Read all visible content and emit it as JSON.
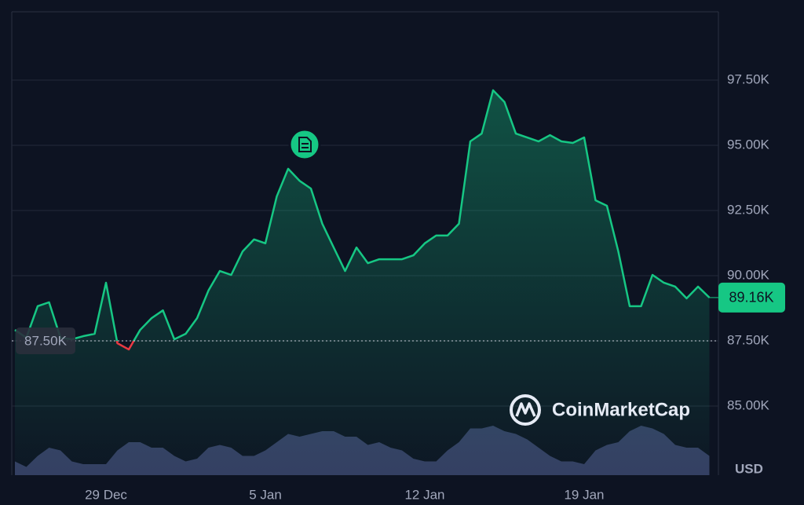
{
  "chart_data": {
    "type": "line",
    "categories": [
      null,
      null,
      null,
      null,
      null,
      null,
      null,
      null,
      "29 Dec",
      null,
      null,
      null,
      null,
      null,
      null,
      null,
      null,
      null,
      null,
      null,
      null,
      null,
      "5 Jan",
      null,
      null,
      null,
      null,
      null,
      null,
      null,
      null,
      null,
      null,
      null,
      null,
      null,
      "12 Jan",
      null,
      null,
      null,
      null,
      null,
      null,
      null,
      null,
      null,
      null,
      null,
      null,
      null,
      "19 Jan",
      null,
      null,
      null,
      null,
      null,
      null,
      null,
      null,
      null,
      null,
      null
    ],
    "values": [
      87920,
      87620,
      88830,
      88980,
      87620,
      87560,
      87680,
      87770,
      89730,
      87410,
      87170,
      87920,
      88370,
      88670,
      87560,
      87770,
      88370,
      89430,
      90180,
      90030,
      90930,
      91390,
      91240,
      93040,
      94100,
      93640,
      93340,
      91990,
      91080,
      90180,
      91080,
      90480,
      90630,
      90630,
      90630,
      90780,
      91240,
      91540,
      91540,
      91990,
      95150,
      95450,
      97110,
      96660,
      95450,
      95300,
      95150,
      95390,
      95150,
      95090,
      95300,
      92890,
      92680,
      90930,
      88830,
      88830,
      90030,
      89730,
      89580,
      89130,
      89580,
      89160
    ],
    "color": "#16c784",
    "color_down": "#ea3943",
    "volume": {
      "color": "#3a4369",
      "values": [
        25,
        15,
        35,
        50,
        45,
        25,
        20,
        20,
        20,
        45,
        60,
        60,
        50,
        50,
        35,
        25,
        30,
        50,
        55,
        50,
        35,
        35,
        45,
        60,
        75,
        70,
        75,
        80,
        80,
        70,
        70,
        55,
        60,
        50,
        45,
        30,
        25,
        25,
        45,
        60,
        85,
        85,
        90,
        80,
        75,
        65,
        50,
        35,
        25,
        25,
        20,
        45,
        55,
        60,
        80,
        90,
        85,
        75,
        55,
        50,
        50,
        35
      ]
    },
    "ylim": [
      82350,
      100120
    ],
    "yticks": [
      {
        "value": 85000,
        "label": "85.00K"
      },
      {
        "value": 87500,
        "label": "87.50K"
      },
      {
        "value": 90000,
        "label": "90.00K"
      },
      {
        "value": 92500,
        "label": "92.50K"
      },
      {
        "value": 95000,
        "label": "95.00K"
      },
      {
        "value": 97500,
        "label": "97.50K"
      }
    ],
    "grid": true,
    "baseline": {
      "value": 87500,
      "label": "87.50K"
    },
    "current_price": {
      "value": 89160,
      "label": "89.16K"
    },
    "currency": "USD",
    "watermark": "CoinMarketCap"
  }
}
